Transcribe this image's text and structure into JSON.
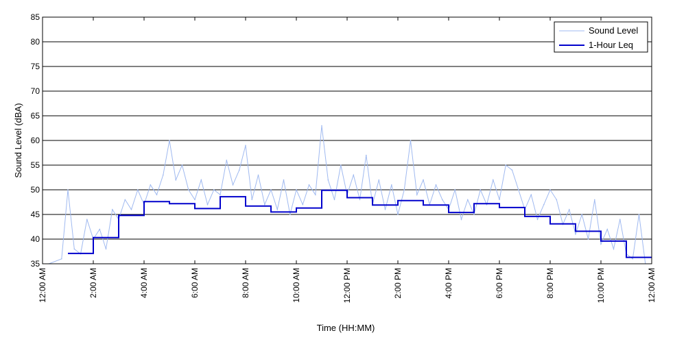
{
  "chart_data": {
    "type": "line",
    "title": "",
    "xlabel": "Time (HH:MM)",
    "ylabel": "Sound Level (dBA)",
    "ylim": [
      35,
      85
    ],
    "yticks": [
      35,
      40,
      45,
      50,
      55,
      60,
      65,
      70,
      75,
      80,
      85
    ],
    "xlim_hours": [
      0,
      24
    ],
    "xtick_labels": [
      "12:00 AM",
      "2:00 AM",
      "4:00 AM",
      "6:00 AM",
      "8:00 AM",
      "10:00 AM",
      "12:00 PM",
      "2:00 PM",
      "4:00 PM",
      "6:00 PM",
      "8:00 PM",
      "10:00 PM",
      "12:00 AM"
    ],
    "grid": "horizontal",
    "legend": "top-right",
    "series": [
      {
        "name": "Sound Level",
        "color": "#9fb9f0",
        "style": "thin noisy line",
        "x_hours": [
          0.25,
          0.75,
          1.0,
          1.25,
          1.5,
          1.75,
          2.0,
          2.25,
          2.5,
          2.75,
          3.0,
          3.25,
          3.5,
          3.75,
          4.0,
          4.25,
          4.5,
          4.75,
          5.0,
          5.25,
          5.5,
          5.75,
          6.0,
          6.25,
          6.5,
          6.75,
          7.0,
          7.25,
          7.5,
          7.75,
          8.0,
          8.25,
          8.5,
          8.75,
          9.0,
          9.25,
          9.5,
          9.75,
          10.0,
          10.25,
          10.5,
          10.75,
          11.0,
          11.25,
          11.5,
          11.75,
          12.0,
          12.25,
          12.5,
          12.75,
          13.0,
          13.25,
          13.5,
          13.75,
          14.0,
          14.25,
          14.5,
          14.75,
          15.0,
          15.25,
          15.5,
          15.75,
          16.0,
          16.25,
          16.5,
          16.75,
          17.0,
          17.25,
          17.5,
          17.75,
          18.0,
          18.25,
          18.5,
          18.75,
          19.0,
          19.25,
          19.5,
          19.75,
          20.0,
          20.25,
          20.5,
          20.75,
          21.0,
          21.25,
          21.5,
          21.75,
          22.0,
          22.25,
          22.5,
          22.75,
          23.0,
          23.25,
          23.5,
          23.75
        ],
        "values": [
          35,
          36,
          50,
          38,
          37,
          44,
          40,
          42,
          38,
          46,
          44,
          48,
          46,
          50,
          47,
          51,
          49,
          53,
          60,
          52,
          55,
          50,
          48,
          52,
          47,
          50,
          49,
          56,
          51,
          54,
          59,
          48,
          53,
          47,
          50,
          46,
          52,
          45,
          50,
          47,
          51,
          49,
          63,
          52,
          48,
          55,
          49,
          53,
          48,
          57,
          47,
          52,
          46,
          51,
          45,
          50,
          60,
          49,
          52,
          47,
          51,
          48,
          46,
          50,
          44,
          48,
          45,
          50,
          47,
          52,
          48,
          55,
          54,
          50,
          46,
          49,
          44,
          47,
          50,
          48,
          43,
          46,
          41,
          45,
          40,
          48,
          39,
          42,
          38,
          44,
          37,
          36,
          45,
          35
        ]
      },
      {
        "name": "1-Hour Leq",
        "color": "#0000cc",
        "style": "step line",
        "hour_start": [
          1,
          2,
          3,
          4,
          5,
          6,
          7,
          8,
          9,
          10,
          11,
          12,
          13,
          14,
          15,
          16,
          17,
          18,
          19,
          20,
          21,
          22,
          23
        ],
        "values": [
          37.1,
          40.3,
          44.8,
          47.6,
          47.2,
          46.2,
          48.6,
          46.7,
          45.5,
          46.3,
          49.9,
          48.4,
          46.9,
          47.8,
          46.9,
          45.4,
          47.2,
          46.4,
          44.6,
          43.1,
          41.6,
          39.6,
          36.3
        ]
      }
    ]
  }
}
